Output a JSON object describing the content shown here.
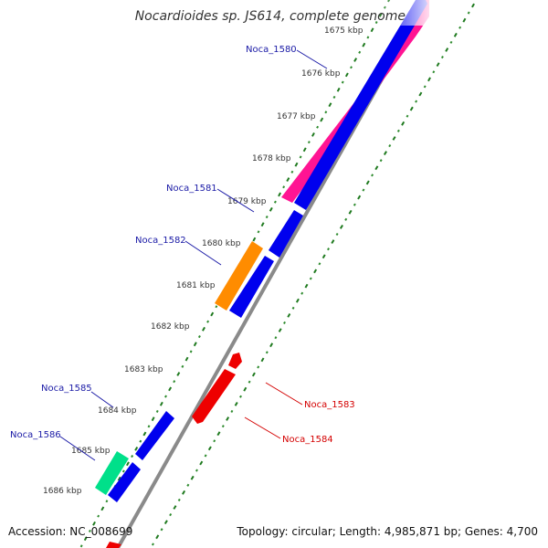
{
  "map": {
    "title": "Nocardioides sp. JS614, complete genome",
    "accession_label": "Accession: NC_008699",
    "summary_label": "Topology: circular; Length: 4,985,871 bp; Genes: 4,700"
  },
  "colors": {
    "backbone": "#8a8a8a",
    "tick_major": "#1f7a1f",
    "tick_minor": "#2e8b2e",
    "blue_gene": "#0000ee",
    "red_gene": "#ee0000",
    "pink_gene": "#ff1493",
    "orange_gene": "#ff8c00",
    "teal_gene": "#00e08a",
    "forward_label": "#1a1aa6",
    "reverse_label": "#d40000"
  },
  "ticks": [
    {
      "kbp": 1675,
      "label": "1675 kbp"
    },
    {
      "kbp": 1676,
      "label": "1676 kbp"
    },
    {
      "kbp": 1677,
      "label": "1677 kbp"
    },
    {
      "kbp": 1678,
      "label": "1678 kbp"
    },
    {
      "kbp": 1679,
      "label": "1679 kbp"
    },
    {
      "kbp": 1680,
      "label": "1680 kbp"
    },
    {
      "kbp": 1681,
      "label": "1681 kbp"
    },
    {
      "kbp": 1682,
      "label": "1682 kbp"
    },
    {
      "kbp": 1683,
      "label": "1683 kbp"
    },
    {
      "kbp": 1684,
      "label": "1684 kbp"
    },
    {
      "kbp": 1685,
      "label": "1685 kbp"
    },
    {
      "kbp": 1686,
      "label": "1686 kbp"
    }
  ],
  "gene_labels": [
    {
      "name": "Noca_1580",
      "strand": "forward"
    },
    {
      "name": "Noca_1581",
      "strand": "forward"
    },
    {
      "name": "Noca_1582",
      "strand": "forward"
    },
    {
      "name": "Noca_1585",
      "strand": "forward"
    },
    {
      "name": "Noca_1586",
      "strand": "forward"
    },
    {
      "name": "Noca_1583",
      "strand": "reverse"
    },
    {
      "name": "Noca_1584",
      "strand": "reverse"
    }
  ]
}
